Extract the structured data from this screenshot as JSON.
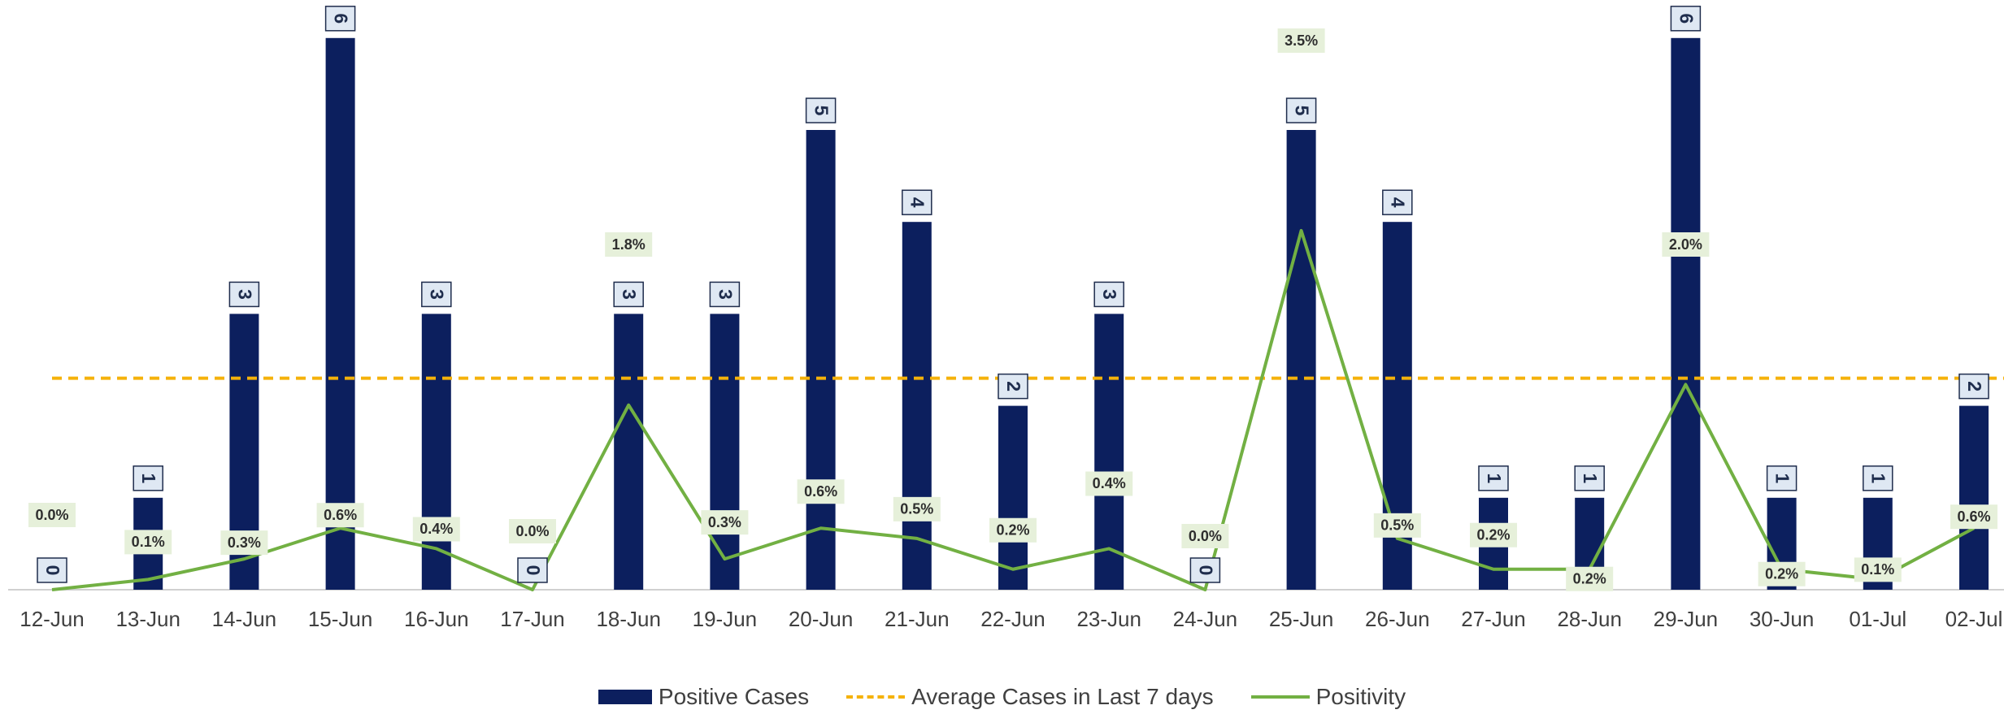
{
  "colors": {
    "bars": "#0c1f5e",
    "average": "#f5b20a",
    "positivity": "#72b043",
    "bar_label_bg": "#dfe8f3",
    "bar_label_border": "#1f2d4d",
    "pos_label_bg": "#e6f0da",
    "axis": "#d0d0d0"
  },
  "chart_data": {
    "type": "bar",
    "categories": [
      "12-Jun",
      "13-Jun",
      "14-Jun",
      "15-Jun",
      "16-Jun",
      "17-Jun",
      "18-Jun",
      "19-Jun",
      "20-Jun",
      "21-Jun",
      "22-Jun",
      "23-Jun",
      "24-Jun",
      "25-Jun",
      "26-Jun",
      "27-Jun",
      "28-Jun",
      "29-Jun",
      "30-Jun",
      "01-Jul",
      "02-Jul"
    ],
    "series": [
      {
        "name": "Positive Cases",
        "type": "bar",
        "values": [
          0,
          1,
          3,
          6,
          3,
          0,
          3,
          3,
          5,
          4,
          2,
          3,
          0,
          5,
          4,
          1,
          1,
          6,
          1,
          1,
          2
        ],
        "labels": [
          "0",
          "1",
          "3",
          "6",
          "3",
          "0",
          "3",
          "3",
          "5",
          "4",
          "2",
          "3",
          "0",
          "5",
          "4",
          "1",
          "1",
          "6",
          "1",
          "1",
          "2"
        ]
      },
      {
        "name": "Average Cases in Last 7 days",
        "type": "line",
        "values": [
          2.3,
          2.3,
          2.3,
          2.3,
          2.3,
          2.3,
          2.3,
          2.3,
          2.3,
          2.3,
          2.3,
          2.3,
          2.3,
          2.3,
          2.3,
          2.3,
          2.3,
          2.3,
          2.3,
          2.3,
          2.3
        ]
      },
      {
        "name": "Positivity",
        "type": "line",
        "values": [
          0.0,
          0.1,
          0.3,
          0.6,
          0.4,
          0.0,
          1.8,
          0.3,
          0.6,
          0.5,
          0.2,
          0.4,
          0.0,
          3.5,
          0.5,
          0.2,
          0.2,
          2.0,
          0.2,
          0.1,
          0.6
        ],
        "labels": [
          "0.0%",
          "0.1%",
          "0.3%",
          "0.6%",
          "0.4%",
          "0.0%",
          "1.8%",
          "0.3%",
          "0.6%",
          "0.5%",
          "0.2%",
          "0.4%",
          "0.0%",
          "3.5%",
          "0.5%",
          "0.2%",
          "0.2%",
          "2.0%",
          "0.2%",
          "0.1%",
          "0.6%"
        ]
      }
    ],
    "ylim": [
      0,
      6.2
    ],
    "y2lim": [
      0,
      3.5
    ],
    "grid": false,
    "legend_position": "bottom"
  }
}
